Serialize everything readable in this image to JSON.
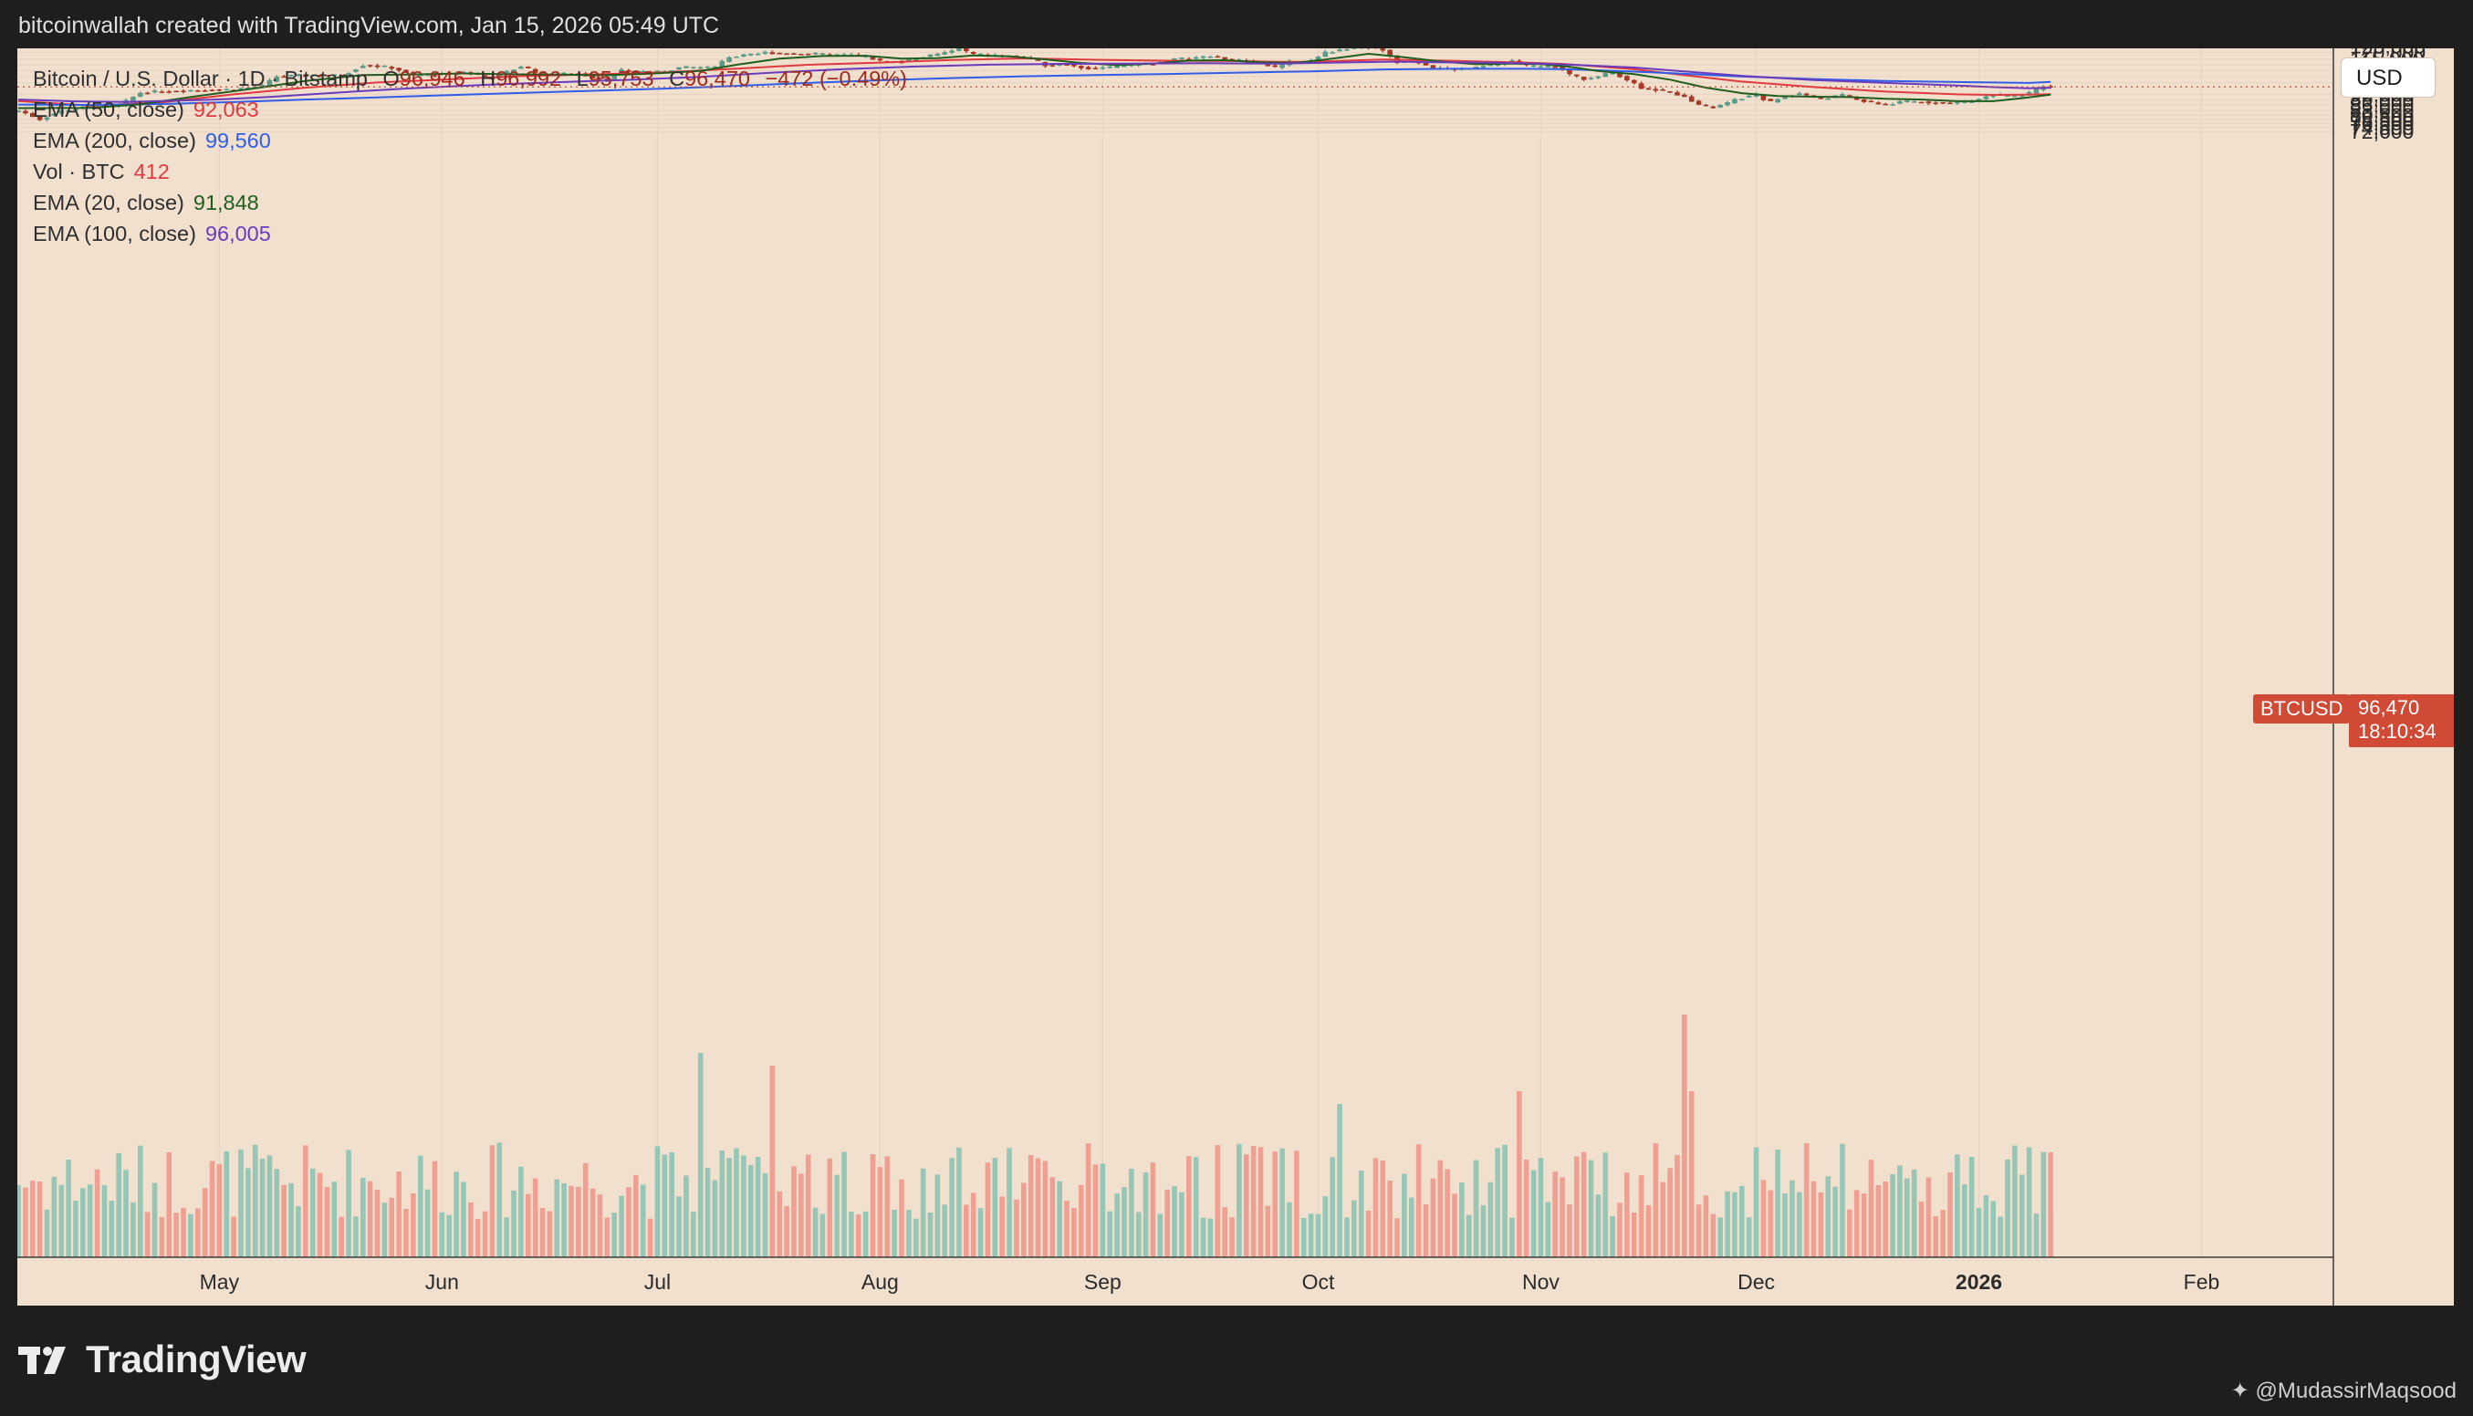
{
  "caption": "bitcoinwallah created with TradingView.com, Jan 15, 2026 05:49 UTC",
  "legend": {
    "title": "Bitcoin / U.S. Dollar · 1D · Bitstamp",
    "open_label": "O",
    "open": "96,946",
    "high_label": "H",
    "high": "96,992",
    "low_label": "L",
    "low": "95,753",
    "close_label": "C",
    "close": "96,470",
    "change": "−472 (−0.49%)",
    "indicators": [
      {
        "label": "EMA (50, close)",
        "value": "92,063",
        "color": "#e0393e"
      },
      {
        "label": "EMA (200, close)",
        "value": "99,560",
        "color": "#2f5ee8"
      },
      {
        "label": "Vol · BTC",
        "value": "412",
        "color": "#e0393e"
      },
      {
        "label": "EMA (20, close)",
        "value": "91,848",
        "color": "#1f5e1f"
      },
      {
        "label": "EMA (100, close)",
        "value": "96,005",
        "color": "#6a3bbd"
      }
    ]
  },
  "currency_button": "USD",
  "price_tag": {
    "symbol": "BTCUSD",
    "price": "96,470",
    "countdown": "18:10:34"
  },
  "branding": {
    "logo": "TradingView",
    "credit": "@MudassirMaqsood"
  },
  "colors": {
    "up": "#5b9a86",
    "down": "#a33a28",
    "vol_up": "#8cc3b3",
    "vol_down": "#f0988c",
    "background": "#f2e0cf"
  },
  "chart_data": {
    "type": "candlestick",
    "symbol": "BTCUSD",
    "timeframe": "1D",
    "exchange": "Bitstamp",
    "y_scale": "log",
    "ylim": [
      72600,
      127000
    ],
    "y_ticks": [
      {
        "v": 125000,
        "label": "125,000"
      },
      {
        "v": 120000,
        "label": "120,000"
      },
      {
        "v": 115000,
        "label": "115,000"
      },
      {
        "v": 111000,
        "label": "111,000"
      },
      {
        "v": 107000,
        "label": "107,000"
      },
      {
        "v": 103000,
        "label": "103,000"
      },
      {
        "v": 99000,
        "label": "99,000"
      },
      {
        "v": 92000,
        "label": "92,000"
      },
      {
        "v": 89000,
        "label": "89,000"
      },
      {
        "v": 86000,
        "label": "86,000"
      },
      {
        "v": 83000,
        "label": "83,000"
      },
      {
        "v": 80500,
        "label": "80,500"
      },
      {
        "v": 78500,
        "label": "78,500"
      },
      {
        "v": 76500,
        "label": "76,500"
      },
      {
        "v": 74500,
        "label": "74,500"
      },
      {
        "v": 72600,
        "label": "72,600"
      }
    ],
    "x_ticks": [
      {
        "day": 28,
        "label": "May",
        "bold": false
      },
      {
        "day": 59,
        "label": "Jun",
        "bold": false
      },
      {
        "day": 89,
        "label": "Jul",
        "bold": false
      },
      {
        "day": 120,
        "label": "Aug",
        "bold": false
      },
      {
        "day": 151,
        "label": "Sep",
        "bold": false
      },
      {
        "day": 181,
        "label": "Oct",
        "bold": false
      },
      {
        "day": 212,
        "label": "Nov",
        "bold": false
      },
      {
        "day": 242,
        "label": "Dec",
        "bold": false
      },
      {
        "day": 273,
        "label": "2026",
        "bold": true
      },
      {
        "day": 304,
        "label": "Feb",
        "bold": false
      }
    ],
    "start_date": "2025-04-03",
    "close_anchors": [
      [
        0,
        83000
      ],
      [
        3,
        78500
      ],
      [
        6,
        83000
      ],
      [
        10,
        85000
      ],
      [
        14,
        85500
      ],
      [
        17,
        93000
      ],
      [
        24,
        94500
      ],
      [
        30,
        95000
      ],
      [
        34,
        97000
      ],
      [
        36,
        103000
      ],
      [
        40,
        104000
      ],
      [
        45,
        103700
      ],
      [
        48,
        111000
      ],
      [
        52,
        109000
      ],
      [
        55,
        104000
      ],
      [
        60,
        104500
      ],
      [
        62,
        106000
      ],
      [
        66,
        102000
      ],
      [
        70,
        110000
      ],
      [
        73,
        104500
      ],
      [
        78,
        105000
      ],
      [
        80,
        102500
      ],
      [
        82,
        101000
      ],
      [
        84,
        107000
      ],
      [
        89,
        106000
      ],
      [
        92,
        109000
      ],
      [
        97,
        109500
      ],
      [
        99,
        117000
      ],
      [
        102,
        118000
      ],
      [
        104,
        120000
      ],
      [
        106,
        119500
      ],
      [
        110,
        119000
      ],
      [
        113,
        118300
      ],
      [
        116,
        118000
      ],
      [
        118,
        117000
      ],
      [
        120,
        113500
      ],
      [
        123,
        113000
      ],
      [
        126,
        117000
      ],
      [
        128,
        118500
      ],
      [
        131,
        123000
      ],
      [
        133,
        118500
      ],
      [
        136,
        118000
      ],
      [
        139,
        117000
      ],
      [
        141,
        115000
      ],
      [
        143,
        111000
      ],
      [
        146,
        111500
      ],
      [
        149,
        108500
      ],
      [
        152,
        109000
      ],
      [
        155,
        111000
      ],
      [
        158,
        112000
      ],
      [
        161,
        115000
      ],
      [
        166,
        117000
      ],
      [
        170,
        114000
      ],
      [
        173,
        112000
      ],
      [
        175,
        109000
      ],
      [
        177,
        113000
      ],
      [
        180,
        114000
      ],
      [
        182,
        120000
      ],
      [
        185,
        122500
      ],
      [
        187,
        125000
      ],
      [
        190,
        122000
      ],
      [
        192,
        113000
      ],
      [
        194,
        115000
      ],
      [
        197,
        109000
      ],
      [
        199,
        108000
      ],
      [
        201,
        108000
      ],
      [
        203,
        109000
      ],
      [
        206,
        111500
      ],
      [
        208,
        114000
      ],
      [
        210,
        110000
      ],
      [
        212,
        109500
      ],
      [
        214,
        110500
      ],
      [
        216,
        104500
      ],
      [
        218,
        101500
      ],
      [
        220,
        103000
      ],
      [
        222,
        106000
      ],
      [
        224,
        101000
      ],
      [
        226,
        96000
      ],
      [
        229,
        94000
      ],
      [
        232,
        91000
      ],
      [
        234,
        86000
      ],
      [
        236,
        84500
      ],
      [
        238,
        87000
      ],
      [
        240,
        90000
      ],
      [
        242,
        91500
      ],
      [
        244,
        87500
      ],
      [
        246,
        91000
      ],
      [
        248,
        92500
      ],
      [
        251,
        89500
      ],
      [
        254,
        91500
      ],
      [
        257,
        88000
      ],
      [
        260,
        86000
      ],
      [
        263,
        88000
      ],
      [
        266,
        87500
      ],
      [
        269,
        87000
      ],
      [
        272,
        88000
      ],
      [
        275,
        92000
      ],
      [
        278,
        90500
      ],
      [
        280,
        92500
      ],
      [
        282,
        96500
      ],
      [
        283,
        96470
      ]
    ],
    "ema_lines": [
      {
        "name": "EMA (50, close)",
        "color": "#e0393e",
        "points": [
          [
            0,
            88200
          ],
          [
            10,
            85600
          ],
          [
            20,
            87400
          ],
          [
            30,
            92000
          ],
          [
            40,
            96000
          ],
          [
            50,
            99200
          ],
          [
            60,
            101200
          ],
          [
            70,
            103300
          ],
          [
            80,
            104400
          ],
          [
            90,
            105900
          ],
          [
            100,
            108300
          ],
          [
            110,
            111000
          ],
          [
            120,
            112600
          ],
          [
            130,
            114500
          ],
          [
            140,
            115600
          ],
          [
            150,
            114600
          ],
          [
            160,
            113900
          ],
          [
            170,
            113700
          ],
          [
            175,
            113100
          ],
          [
            180,
            113200
          ],
          [
            190,
            114800
          ],
          [
            200,
            113800
          ],
          [
            210,
            112600
          ],
          [
            215,
            111700
          ],
          [
            220,
            109800
          ],
          [
            225,
            107900
          ],
          [
            230,
            105000
          ],
          [
            240,
            99800
          ],
          [
            250,
            96400
          ],
          [
            260,
            93600
          ],
          [
            270,
            92000
          ],
          [
            275,
            91700
          ],
          [
            280,
            91800
          ],
          [
            283,
            92063
          ]
        ]
      },
      {
        "name": "EMA (200, close)",
        "color": "#2f5ee8",
        "points": [
          [
            0,
            86200
          ],
          [
            10,
            86000
          ],
          [
            20,
            86500
          ],
          [
            30,
            87600
          ],
          [
            40,
            89000
          ],
          [
            50,
            90200
          ],
          [
            60,
            91600
          ],
          [
            70,
            92800
          ],
          [
            80,
            94100
          ],
          [
            90,
            95400
          ],
          [
            100,
            97100
          ],
          [
            110,
            98900
          ],
          [
            120,
            100600
          ],
          [
            130,
            102000
          ],
          [
            140,
            103200
          ],
          [
            150,
            104000
          ],
          [
            160,
            104700
          ],
          [
            170,
            105600
          ],
          [
            180,
            106500
          ],
          [
            190,
            107800
          ],
          [
            200,
            108200
          ],
          [
            210,
            108200
          ],
          [
            215,
            108000
          ],
          [
            220,
            107200
          ],
          [
            230,
            105300
          ],
          [
            240,
            103000
          ],
          [
            250,
            101400
          ],
          [
            260,
            100200
          ],
          [
            270,
            99500
          ],
          [
            275,
            99200
          ],
          [
            280,
            98900
          ],
          [
            283,
            99560
          ]
        ]
      },
      {
        "name": "EMA (20, close)",
        "color": "#1f5e1f",
        "points": [
          [
            0,
            84300
          ],
          [
            10,
            84400
          ],
          [
            17,
            86300
          ],
          [
            25,
            91000
          ],
          [
            32,
            95000
          ],
          [
            40,
            100200
          ],
          [
            48,
            104000
          ],
          [
            55,
            104400
          ],
          [
            62,
            105100
          ],
          [
            68,
            104500
          ],
          [
            75,
            104300
          ],
          [
            82,
            103900
          ],
          [
            88,
            104900
          ],
          [
            95,
            106800
          ],
          [
            100,
            111000
          ],
          [
            106,
            115500
          ],
          [
            112,
            117400
          ],
          [
            118,
            117600
          ],
          [
            123,
            115400
          ],
          [
            128,
            115800
          ],
          [
            133,
            117800
          ],
          [
            138,
            117100
          ],
          [
            143,
            114900
          ],
          [
            148,
            112300
          ],
          [
            153,
            110800
          ],
          [
            158,
            111800
          ],
          [
            163,
            114000
          ],
          [
            168,
            114300
          ],
          [
            173,
            112800
          ],
          [
            178,
            112500
          ],
          [
            182,
            114800
          ],
          [
            188,
            119000
          ],
          [
            193,
            116500
          ],
          [
            198,
            113400
          ],
          [
            203,
            111400
          ],
          [
            208,
            111900
          ],
          [
            212,
            111500
          ],
          [
            216,
            109700
          ],
          [
            220,
            106700
          ],
          [
            225,
            104600
          ],
          [
            230,
            101000
          ],
          [
            235,
            96000
          ],
          [
            240,
            92700
          ],
          [
            245,
            91000
          ],
          [
            250,
            90600
          ],
          [
            255,
            90400
          ],
          [
            260,
            89500
          ],
          [
            265,
            89000
          ],
          [
            270,
            88100
          ],
          [
            275,
            88100
          ],
          [
            279,
            89800
          ],
          [
            283,
            91848
          ]
        ]
      },
      {
        "name": "EMA (100, close)",
        "color": "#6a3bbd",
        "points": [
          [
            0,
            89000
          ],
          [
            8,
            88000
          ],
          [
            15,
            87700
          ],
          [
            20,
            88200
          ],
          [
            27,
            88900
          ],
          [
            35,
            90500
          ],
          [
            45,
            93200
          ],
          [
            55,
            95700
          ],
          [
            65,
            97700
          ],
          [
            75,
            99400
          ],
          [
            85,
            100900
          ],
          [
            95,
            102800
          ],
          [
            105,
            105600
          ],
          [
            115,
            108000
          ],
          [
            125,
            109800
          ],
          [
            135,
            111100
          ],
          [
            145,
            111700
          ],
          [
            155,
            111900
          ],
          [
            165,
            112100
          ],
          [
            175,
            111800
          ],
          [
            185,
            112700
          ],
          [
            192,
            113300
          ],
          [
            197,
            112800
          ],
          [
            205,
            112600
          ],
          [
            212,
            111900
          ],
          [
            218,
            110700
          ],
          [
            225,
            109100
          ],
          [
            232,
            106500
          ],
          [
            240,
            103500
          ],
          [
            250,
            100800
          ],
          [
            260,
            98900
          ],
          [
            270,
            97300
          ],
          [
            275,
            96300
          ],
          [
            280,
            95600
          ],
          [
            283,
            96005
          ]
        ]
      }
    ],
    "volume_spikes": [
      [
        95,
        16
      ],
      [
        105,
        15
      ],
      [
        232,
        19
      ],
      [
        233,
        13
      ],
      [
        184,
        12
      ],
      [
        209,
        13
      ]
    ]
  }
}
